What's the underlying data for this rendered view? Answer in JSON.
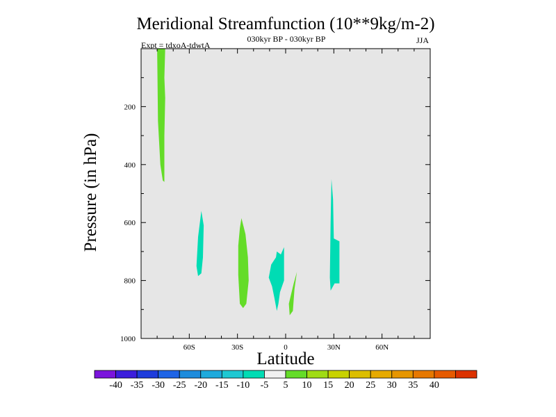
{
  "chart_data": {
    "type": "filled-contour",
    "title": "Meridional Streamfunction (10**9kg/m-2)",
    "subtitle": "030kyr BP - 030kyr BP",
    "experiment": "Expt = tdxoA-tdwtA",
    "season": "JJA",
    "xlabel": "Latitude",
    "ylabel": "Pressure (in hPa)",
    "xlim": [
      -90,
      90
    ],
    "ylim": [
      0,
      1000
    ],
    "y_inverted": true,
    "x_ticks": [
      {
        "value": -60,
        "label": "60S"
      },
      {
        "value": -30,
        "label": "30S"
      },
      {
        "value": 0,
        "label": "0"
      },
      {
        "value": 30,
        "label": "30N"
      },
      {
        "value": 60,
        "label": "60N"
      }
    ],
    "y_ticks": [
      {
        "value": 200,
        "label": "200"
      },
      {
        "value": 400,
        "label": "400"
      },
      {
        "value": 600,
        "label": "600"
      },
      {
        "value": 800,
        "label": "800"
      },
      {
        "value": 1000,
        "label": "1000"
      }
    ],
    "background_color": "#e6e6e6",
    "colorbar": {
      "colors": [
        "#7b14dc",
        "#3c1edc",
        "#1e3cdc",
        "#1e64e6",
        "#1e8cdc",
        "#1eaadc",
        "#1ec8d2",
        "#00dcb4",
        "#f0f0f0",
        "#64dc28",
        "#a0dc14",
        "#c8d200",
        "#dcbe00",
        "#e6aa00",
        "#e69600",
        "#e67800",
        "#e65a00",
        "#dc3200"
      ],
      "labels": [
        "-40",
        "-35",
        "-30",
        "-25",
        "-20",
        "-15",
        "-10",
        "-5",
        "5",
        "10",
        "15",
        "20",
        "25",
        "30",
        "35",
        "40"
      ]
    },
    "regions": [
      {
        "name": "green-column-45S",
        "value_range": "5 to 10",
        "color": "#64dc28",
        "points": [
          [
            -80,
            0
          ],
          [
            -75,
            0
          ],
          [
            -75.5,
            100
          ],
          [
            -75,
            170
          ],
          [
            -75.5,
            300
          ],
          [
            -75.5,
            460
          ],
          [
            -76.5,
            455
          ],
          [
            -78,
            400
          ],
          [
            -79.5,
            250
          ],
          [
            -79.8,
            100
          ]
        ]
      },
      {
        "name": "teal-blob-63S",
        "value_range": "-10 to -5",
        "color": "#00dcb4",
        "points": [
          [
            -52.5,
            560
          ],
          [
            -51,
            610
          ],
          [
            -51.5,
            720
          ],
          [
            -52.5,
            775
          ],
          [
            -54.5,
            785
          ],
          [
            -55.5,
            750
          ],
          [
            -54.5,
            650
          ]
        ]
      },
      {
        "name": "green-blob-27S",
        "value_range": "5 to 10",
        "color": "#64dc28",
        "points": [
          [
            -27.5,
            585
          ],
          [
            -25,
            640
          ],
          [
            -23.5,
            720
          ],
          [
            -23,
            800
          ],
          [
            -24.5,
            880
          ],
          [
            -26.5,
            895
          ],
          [
            -28.5,
            880
          ],
          [
            -29.5,
            780
          ],
          [
            -29.5,
            680
          ],
          [
            -28.5,
            620
          ]
        ]
      },
      {
        "name": "teal-blob-8S",
        "value_range": "-10 to -5",
        "color": "#00dcb4",
        "points": [
          [
            -10,
            775
          ],
          [
            -9,
            745
          ],
          [
            -6,
            720
          ],
          [
            -5.5,
            700
          ],
          [
            -3,
            710
          ],
          [
            -1,
            685
          ],
          [
            -1,
            800
          ],
          [
            -3.5,
            840
          ],
          [
            -4.5,
            880
          ],
          [
            -5.5,
            905
          ],
          [
            -7,
            860
          ],
          [
            -8.5,
            820
          ],
          [
            -10.5,
            790
          ]
        ]
      },
      {
        "name": "green-blob-3N",
        "value_range": "5 to 10",
        "color": "#64dc28",
        "points": [
          [
            7,
            770
          ],
          [
            5.5,
            830
          ],
          [
            4.5,
            905
          ],
          [
            2.5,
            920
          ],
          [
            2,
            880
          ],
          [
            5,
            810
          ]
        ]
      },
      {
        "name": "teal-blob-29N",
        "value_range": "-10 to -5",
        "color": "#00dcb4",
        "points": [
          [
            28.5,
            450
          ],
          [
            29.5,
            520
          ],
          [
            30,
            655
          ],
          [
            33.5,
            665
          ],
          [
            33.5,
            810
          ],
          [
            30.5,
            810
          ],
          [
            28,
            835
          ],
          [
            27.5,
            790
          ],
          [
            28,
            600
          ]
        ]
      }
    ]
  }
}
